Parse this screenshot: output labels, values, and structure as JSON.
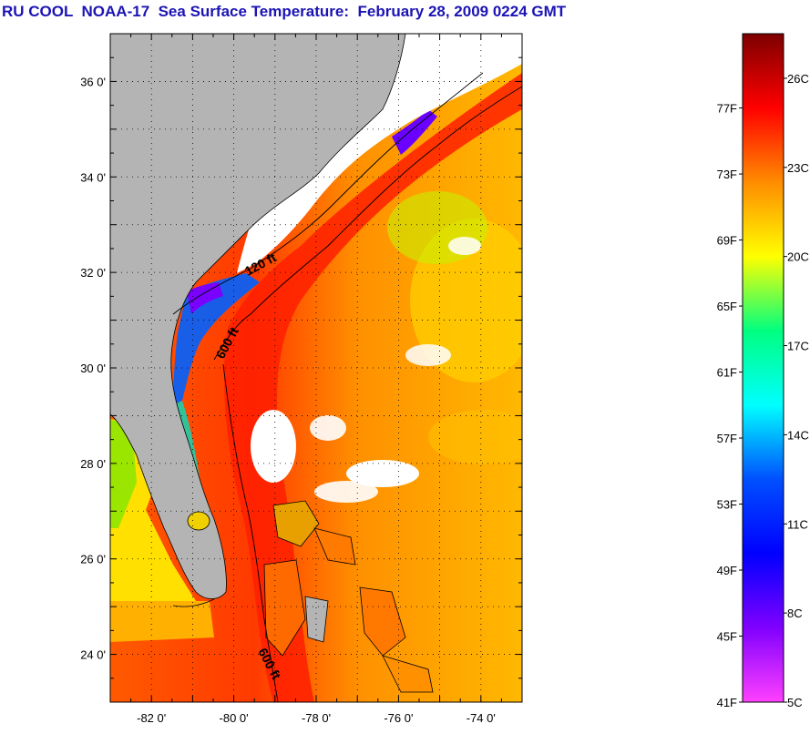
{
  "title": "RU COOL  NOAA-17  Sea Surface Temperature:  February 28, 2009 0224 GMT",
  "map": {
    "lon_range": [
      -83,
      -73
    ],
    "lat_range": [
      23,
      37
    ],
    "lat_ticks": [
      {
        "value": 36,
        "label": "36 0'"
      },
      {
        "value": 34,
        "label": "34 0'"
      },
      {
        "value": 32,
        "label": "32 0'"
      },
      {
        "value": 30,
        "label": "30 0'"
      },
      {
        "value": 28,
        "label": "28 0'"
      },
      {
        "value": 26,
        "label": "26 0'"
      },
      {
        "value": 24,
        "label": "24 0'"
      }
    ],
    "lon_ticks": [
      {
        "value": -82,
        "label": "-82 0'"
      },
      {
        "value": -80,
        "label": "-80 0'"
      },
      {
        "value": -78,
        "label": "-78 0'"
      },
      {
        "value": -76,
        "label": "-76 0'"
      },
      {
        "value": -74,
        "label": "-74 0'"
      }
    ],
    "isobath_labels": [
      "120 ft",
      "600 ft",
      "600 ft"
    ],
    "colors": {
      "land": "#b4b4b4",
      "cloud": "#ffffff",
      "coastline": "#000000"
    }
  },
  "colorbar": {
    "fahrenheit_labels": [
      "77F",
      "73F",
      "69F",
      "65F",
      "61F",
      "57F",
      "53F",
      "49F",
      "45F",
      "41F"
    ],
    "celsius_labels": [
      "26C",
      "23C",
      "20C",
      "17C",
      "14C",
      "11C",
      "8C",
      "5C"
    ],
    "gradient_colors": [
      "#7d0000",
      "#ff0000",
      "#ff8c00",
      "#ffff00",
      "#00ff80",
      "#00ffff",
      "#0050ff",
      "#0000ff",
      "#8000ff",
      "#ff40ff"
    ]
  }
}
